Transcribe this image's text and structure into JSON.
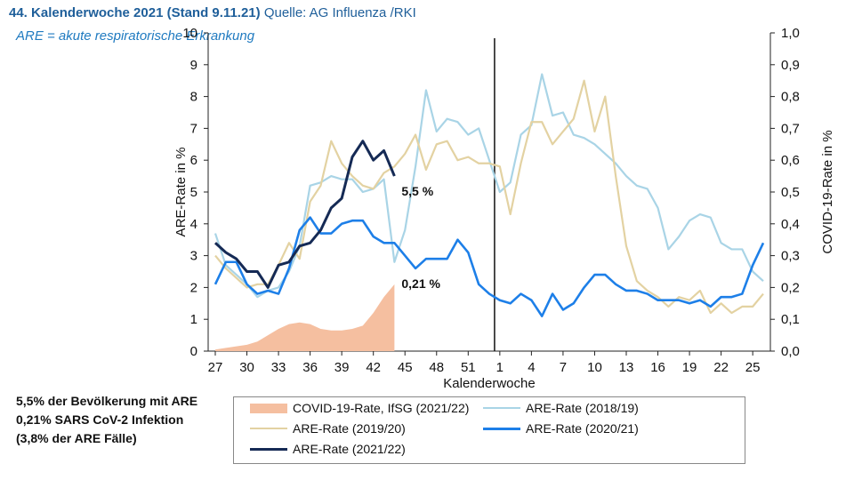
{
  "header": {
    "title_bold": "44. Kalenderwoche 2021 (Stand 9.11.21)",
    "title_source": "Quelle: AG Influenza /RKI",
    "subtitle": "ARE = akute respiratorische Erkrankung"
  },
  "notes": [
    "5,5% der Bevölkerung mit ARE",
    "0,21% SARS CoV-2 Infektion",
    "(3,8% der ARE Fälle)"
  ],
  "chart_data": {
    "type": "line",
    "xlabel": "Kalenderwoche",
    "ylabel_left": "ARE-Rate in %",
    "ylabel_right": "COVID-19-Rate in %",
    "ylim_left": [
      0,
      10
    ],
    "ylim_right": [
      0,
      1.0
    ],
    "x_weeks": [
      27,
      28,
      29,
      30,
      31,
      32,
      33,
      34,
      35,
      36,
      37,
      38,
      39,
      40,
      41,
      42,
      43,
      44,
      45,
      46,
      47,
      48,
      49,
      50,
      51,
      52,
      53,
      1,
      2,
      3,
      4,
      5,
      6,
      7,
      8,
      9,
      10,
      11,
      12,
      13,
      14,
      15,
      16,
      17,
      18,
      19,
      20,
      21,
      22,
      23,
      24,
      25,
      26
    ],
    "x_tick_labels": [
      "27",
      "30",
      "33",
      "36",
      "39",
      "42",
      "45",
      "48",
      "51",
      "1",
      "4",
      "7",
      "10",
      "13",
      "16",
      "19",
      "22",
      "25"
    ],
    "left_ticks": [
      "0",
      "1",
      "2",
      "3",
      "4",
      "5",
      "6",
      "7",
      "8",
      "9",
      "10"
    ],
    "right_ticks": [
      "0,0",
      "0,1",
      "0,2",
      "0,3",
      "0,4",
      "0,5",
      "0,6",
      "0,7",
      "0,8",
      "0,9",
      "1,0"
    ],
    "year_divider_after_week": 53,
    "grid": false,
    "legend_position": "bottom",
    "annotations": [
      {
        "text": "5,5 %",
        "series": "ARE-Rate (2021/22)",
        "week": 44,
        "value": 5.5
      },
      {
        "text": "0,21 %",
        "series": "COVID-19-Rate, IfSG (2021/22)",
        "week": 44,
        "value": 0.21
      }
    ],
    "series": [
      {
        "name": "COVID-19-Rate, IfSG (2021/22)",
        "kind": "area",
        "axis": "right",
        "color": "#f5bfa0",
        "values": [
          0.005,
          0.01,
          0.015,
          0.02,
          0.03,
          0.05,
          0.07,
          0.085,
          0.09,
          0.085,
          0.07,
          0.065,
          0.065,
          0.07,
          0.08,
          0.12,
          0.17,
          0.21
        ]
      },
      {
        "name": "ARE-Rate (2018/19)",
        "kind": "line",
        "axis": "left",
        "color": "#a9d4e6",
        "values": [
          3.7,
          2.7,
          2.4,
          2.1,
          1.7,
          1.9,
          2.0,
          2.5,
          3.3,
          5.2,
          5.3,
          5.5,
          5.4,
          5.4,
          5.0,
          5.1,
          5.4,
          2.8,
          3.8,
          5.8,
          8.2,
          6.9,
          7.3,
          7.2,
          6.8,
          7.0,
          6.0,
          5.0,
          5.3,
          6.8,
          7.1,
          8.7,
          7.4,
          7.5,
          6.8,
          6.7,
          6.5,
          6.2,
          5.9,
          5.5,
          5.2,
          5.1,
          4.5,
          3.2,
          3.6,
          4.1,
          4.3,
          4.2,
          3.4,
          3.2,
          3.2,
          2.5,
          2.2
        ]
      },
      {
        "name": "ARE-Rate (2019/20)",
        "kind": "line",
        "axis": "left",
        "color": "#e3d2a2",
        "values": [
          3.0,
          2.6,
          2.3,
          2.0,
          2.1,
          2.1,
          2.7,
          3.4,
          2.9,
          4.7,
          5.2,
          6.6,
          5.9,
          5.5,
          5.2,
          5.1,
          5.6,
          5.8,
          6.2,
          6.8,
          5.7,
          6.5,
          6.6,
          6.0,
          6.1,
          5.9,
          5.9,
          5.8,
          4.3,
          5.9,
          7.2,
          7.2,
          6.5,
          6.9,
          7.3,
          8.5,
          6.9,
          8.0,
          5.5,
          3.3,
          2.2,
          1.9,
          1.7,
          1.4,
          1.7,
          1.6,
          1.9,
          1.2,
          1.5,
          1.2,
          1.4,
          1.4,
          1.8
        ]
      },
      {
        "name": "ARE-Rate (2020/21)",
        "kind": "line",
        "axis": "left",
        "color": "#1d7fe8",
        "values": [
          2.1,
          2.8,
          2.8,
          2.1,
          1.8,
          1.9,
          1.8,
          2.6,
          3.8,
          4.2,
          3.7,
          3.7,
          4.0,
          4.1,
          4.1,
          3.6,
          3.4,
          3.4,
          3.0,
          2.6,
          2.9,
          2.9,
          2.9,
          3.5,
          3.1,
          2.1,
          1.8,
          1.6,
          1.5,
          1.8,
          1.6,
          1.1,
          1.8,
          1.3,
          1.5,
          2.0,
          2.4,
          2.4,
          2.1,
          1.9,
          1.9,
          1.8,
          1.6,
          1.6,
          1.6,
          1.5,
          1.6,
          1.4,
          1.7,
          1.7,
          1.8,
          2.7,
          3.4
        ]
      },
      {
        "name": "ARE-Rate (2021/22)",
        "kind": "line",
        "axis": "left",
        "color": "#152a55",
        "values": [
          3.4,
          3.1,
          2.9,
          2.5,
          2.5,
          2.0,
          2.7,
          2.8,
          3.3,
          3.4,
          3.8,
          4.5,
          4.8,
          6.1,
          6.6,
          6.0,
          6.3,
          5.5
        ]
      }
    ]
  }
}
